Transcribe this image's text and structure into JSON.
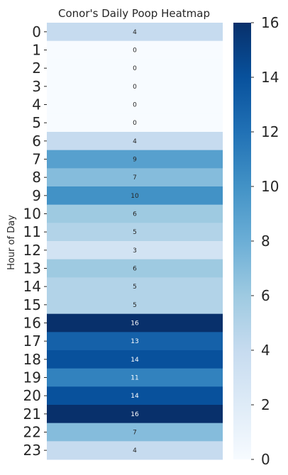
{
  "chart_data": {
    "type": "heatmap",
    "title": "Conor's Daily Poop Heatmap",
    "xlabel": "",
    "ylabel": "Hour of Day",
    "rows": [
      "0",
      "1",
      "2",
      "3",
      "4",
      "5",
      "6",
      "7",
      "8",
      "9",
      "10",
      "11",
      "12",
      "13",
      "14",
      "15",
      "16",
      "17",
      "18",
      "19",
      "20",
      "21",
      "22",
      "23"
    ],
    "values": [
      4,
      0,
      0,
      0,
      0,
      0,
      4,
      9,
      7,
      10,
      6,
      5,
      3,
      6,
      5,
      5,
      16,
      13,
      14,
      11,
      14,
      16,
      7,
      4
    ],
    "colorbar": {
      "min": 0,
      "max": 16,
      "ticks": [
        0,
        2,
        4,
        6,
        8,
        10,
        12,
        14,
        16
      ],
      "colormap": "Blues"
    },
    "annotations": "cell values shown"
  }
}
